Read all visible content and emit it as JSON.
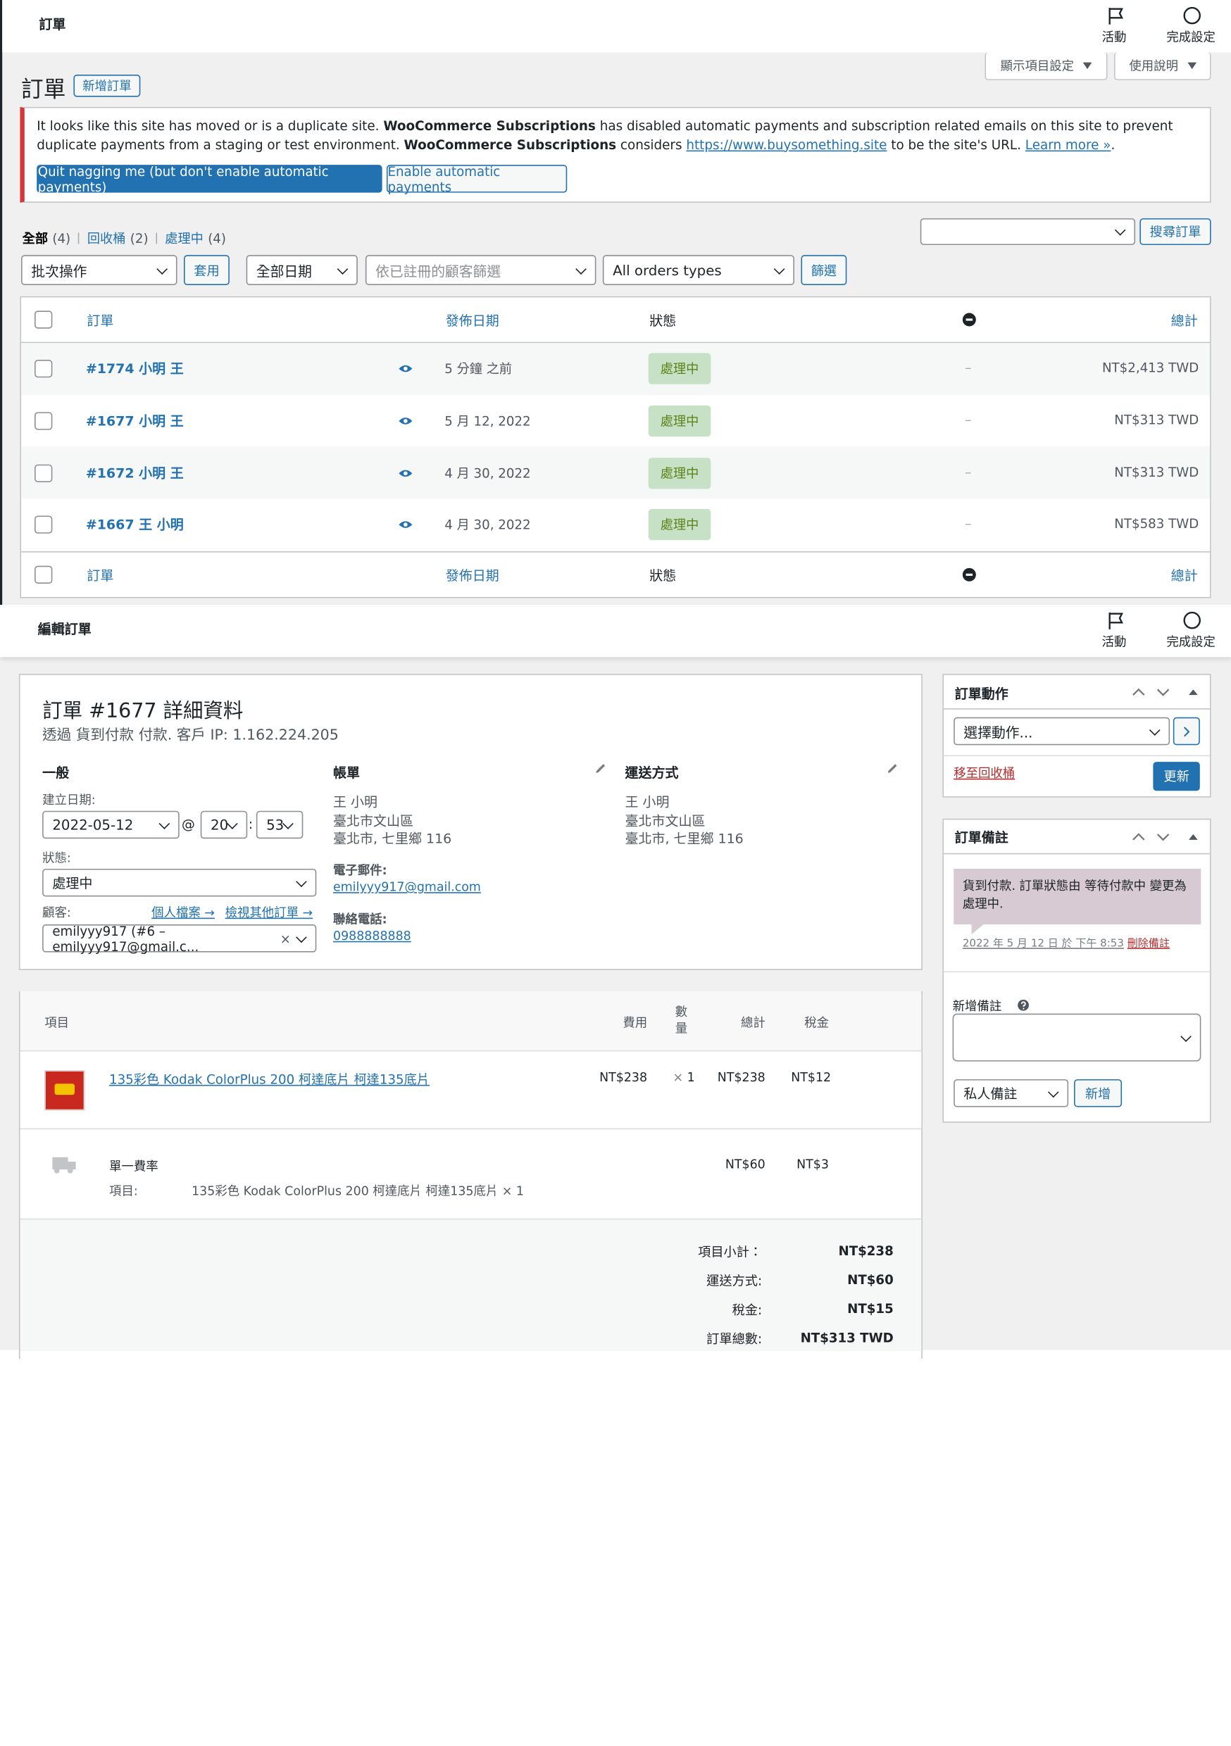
{
  "top_bar": {
    "title": "訂單",
    "activity": "活動",
    "setup": "完成設定"
  },
  "header": {
    "title": "訂單",
    "add_button": "新增訂單",
    "screen_options": "顯示項目設定",
    "help": "使用說明"
  },
  "notice": {
    "t1": "It looks like this site has moved or is a duplicate site. ",
    "b1": "WooCommerce Subscriptions",
    "t2": " has disabled automatic payments and subscription related emails on this site to prevent duplicate payments from a staging or test environment. ",
    "b2": "WooCommerce Subscriptions",
    "t3": " considers ",
    "link": "https://www.buysomething.site",
    "t4": " to be the site's URL. ",
    "learn_more": "Learn more »",
    "t5": ".",
    "quit_button": "Quit nagging me (but don't enable automatic payments)",
    "enable_button": "Enable automatic payments"
  },
  "views": [
    {
      "label": "全部",
      "count": "(4)"
    },
    {
      "label": "回收桶",
      "count": "(2)"
    },
    {
      "label": "處理中",
      "count": "(4)"
    }
  ],
  "search_button": "搜尋訂單",
  "filters": {
    "bulk": "批次操作",
    "apply": "套用",
    "date": "全部日期",
    "customer": "依已註冊的顧客篩選",
    "type": "All orders types",
    "filter": "篩選"
  },
  "orders": {
    "columns": {
      "order": "訂單",
      "date": "發佈日期",
      "status": "狀態",
      "total": "總計"
    },
    "rows": [
      {
        "order": "#1774 小明 王",
        "date": "5 分鐘 之前",
        "status": "處理中",
        "billing": "–",
        "total": "NT$2,413 TWD"
      },
      {
        "order": "#1677 小明 王",
        "date": "5 月 12, 2022",
        "status": "處理中",
        "billing": "–",
        "total": "NT$313 TWD"
      },
      {
        "order": "#1672 小明 王",
        "date": "4 月 30, 2022",
        "status": "處理中",
        "billing": "–",
        "total": "NT$313 TWD"
      },
      {
        "order": "#1667 王 小明",
        "date": "4 月 30, 2022",
        "status": "處理中",
        "billing": "–",
        "total": "NT$583 TWD"
      }
    ]
  },
  "edit_bar": {
    "title": "編輯訂單",
    "activity": "活動",
    "setup": "完成設定"
  },
  "order": {
    "title": "訂單 #1677 詳細資料",
    "subtitle": "透過 貨到付款 付款. 客戶 IP: 1.162.224.205",
    "general": {
      "heading": "一般",
      "created_label": "建立日期:",
      "date": "2022-05-12",
      "at": "@",
      "hour": "20",
      "colon": ":",
      "minute": "53",
      "status_label": "狀態:",
      "status": "處理中",
      "customer_label": "顧客:",
      "profile": "個人檔案 →",
      "other_orders": "檢視其他訂單 →",
      "customer": "emilyyy917 (#6 – emilyyy917@gmail.c...",
      "clear": "×"
    },
    "billing": {
      "heading": "帳單",
      "lines": [
        "王 小明",
        "臺北市文山區",
        "臺北市, 七里鄉 116"
      ],
      "email_label": "電子郵件:",
      "email": "emilyyy917@gmail.com",
      "phone_label": "聯絡電話:",
      "phone": "0988888888"
    },
    "shipping": {
      "heading": "運送方式",
      "lines": [
        "王 小明",
        "臺北市文山區",
        "臺北市, 七里鄉 116"
      ]
    }
  },
  "items": {
    "columns": {
      "item": "項目",
      "cost": "費用",
      "qty": "數量",
      "total": "總計",
      "tax": "稅金"
    },
    "product": {
      "name": "135彩色 Kodak ColorPlus 200 柯達底片 柯達135底片",
      "cost": "NT$238",
      "qty_prefix": "×",
      "qty": "1",
      "total": "NT$238",
      "tax": "NT$12"
    },
    "shipping": {
      "name": "單一費率",
      "items_label": "項目:",
      "items": "135彩色 Kodak ColorPlus 200 柯達底片 柯達135底片 × 1",
      "total": "NT$60",
      "tax": "NT$3"
    },
    "totals": [
      {
        "label": "項目小計：",
        "value": "NT$238"
      },
      {
        "label": "運送方式:",
        "value": "NT$60"
      },
      {
        "label": "稅金:",
        "value": "NT$15"
      },
      {
        "label": "訂單總數:",
        "value": "NT$313 TWD"
      }
    ]
  },
  "actions": {
    "heading": "訂單動作",
    "select": "選擇動作...",
    "trash": "移至回收桶",
    "update": "更新"
  },
  "notes": {
    "heading": "訂單備註",
    "note": "貨到付款. 訂單狀態由 等待付款中 變更為 處理中.",
    "meta": "2022 年 5 月 12 日 於 下午 8:53",
    "delete": "刪除備註",
    "add_label": "新增備註",
    "type": "私人備註",
    "add_button": "新增"
  }
}
